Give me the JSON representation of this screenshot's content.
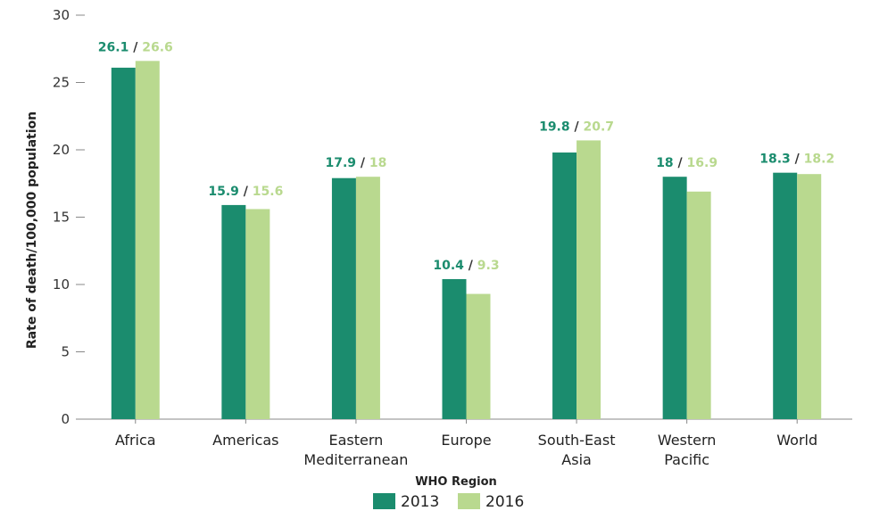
{
  "chart_data": {
    "type": "bar",
    "xlabel": "WHO Region",
    "ylabel": "Rate of death/100,000 population",
    "ylim": [
      0,
      30
    ],
    "yticks": [
      0,
      5,
      10,
      15,
      20,
      25,
      30
    ],
    "categories": [
      [
        "Africa"
      ],
      [
        "Americas"
      ],
      [
        "Eastern",
        "Mediterranean"
      ],
      [
        "Europe"
      ],
      [
        "South-East",
        "Asia"
      ],
      [
        "Western",
        "Pacific"
      ],
      [
        "World"
      ]
    ],
    "series": [
      {
        "name": "2013",
        "color": "#1b8c6e",
        "values": [
          26.1,
          15.9,
          17.9,
          10.4,
          19.8,
          18,
          18.3
        ],
        "labels": [
          "26.1",
          "15.9",
          "17.9",
          "10.4",
          "19.8",
          "18",
          "18.3"
        ]
      },
      {
        "name": "2016",
        "color": "#b9d98f",
        "values": [
          26.6,
          15.6,
          18,
          9.3,
          20.7,
          16.9,
          18.2
        ],
        "labels": [
          "26.6",
          "15.6",
          "18",
          "9.3",
          "20.7",
          "16.9",
          "18.2"
        ]
      }
    ],
    "label_separator": "/",
    "separator_color": "#333333",
    "grid": false,
    "legend_position": "bottom"
  }
}
